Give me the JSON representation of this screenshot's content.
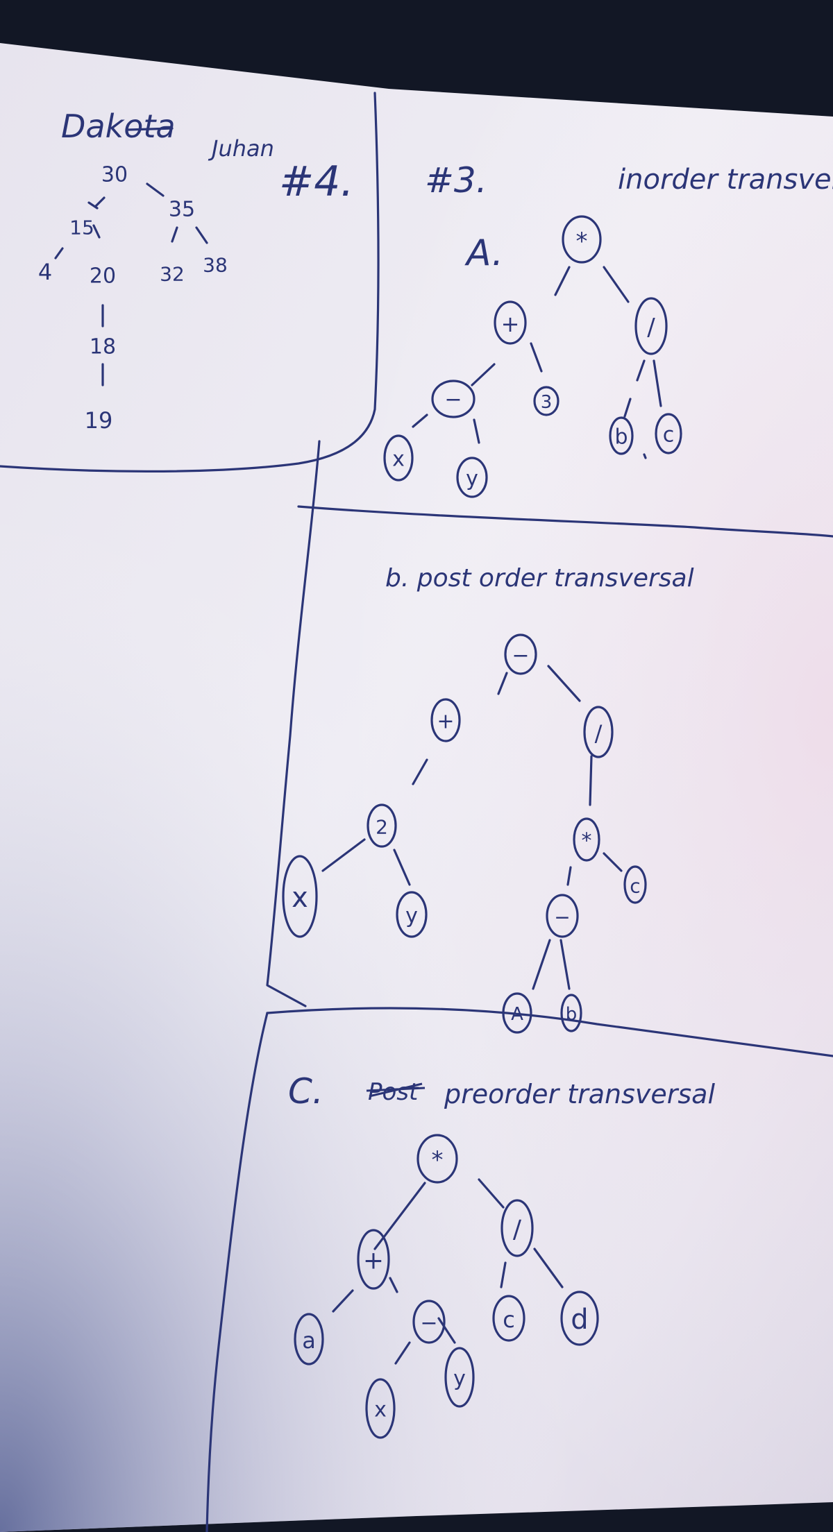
{
  "header": {
    "name_1": "Dakota",
    "name_2": "Juhan",
    "problem_4": "#4.",
    "problem_3": "#3.",
    "inorder_title": "inorder transver"
  },
  "bst": {
    "values": [
      "30",
      "15",
      "35",
      "4",
      "20",
      "32",
      "38",
      "18",
      "19"
    ]
  },
  "part_a": {
    "label": "A.",
    "nodes": [
      "*",
      "+",
      "/",
      "−",
      "3",
      "b",
      "c",
      "x",
      "y"
    ]
  },
  "part_b": {
    "title": "b. post order transversal",
    "nodes": [
      "−",
      "+",
      "/",
      "2",
      "x",
      "y",
      "*",
      "c",
      "−",
      "A",
      "b"
    ]
  },
  "part_c": {
    "title_prefix": "C.",
    "title_struck": "Post",
    "title_rest": "preorder transversal",
    "nodes": [
      "*",
      "+",
      "/",
      "a",
      "−",
      "c",
      "d",
      "x",
      "y"
    ]
  },
  "colors": {
    "ink": "#2b3577",
    "paper": "#ece9f2",
    "paper_shadow": "#b9b5c8",
    "background": "#121725"
  }
}
